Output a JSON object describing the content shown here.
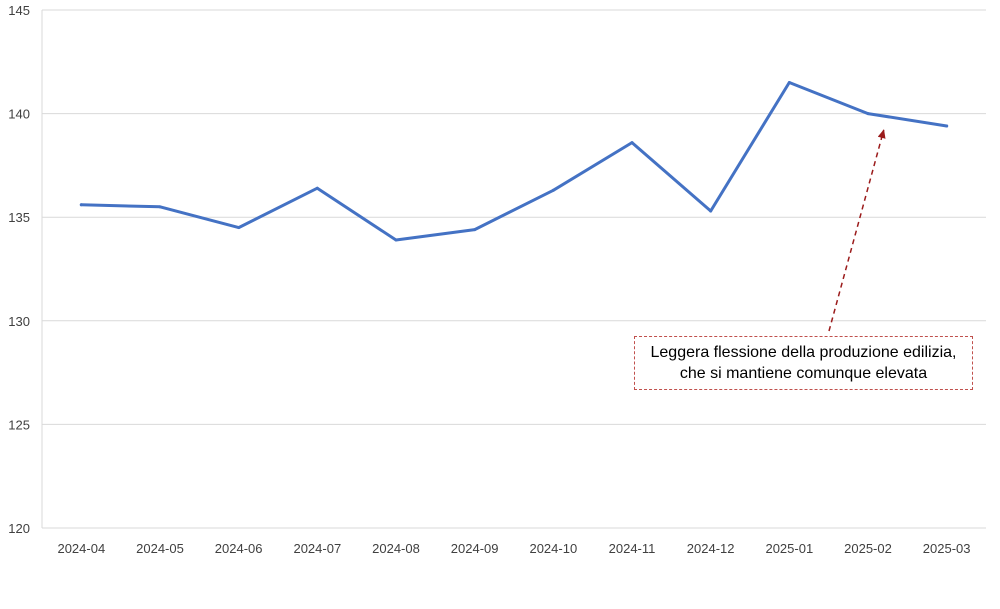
{
  "chart_data": {
    "type": "line",
    "title": "",
    "xlabel": "",
    "ylabel": "",
    "categories": [
      "2024-04",
      "2024-05",
      "2024-06",
      "2024-07",
      "2024-08",
      "2024-09",
      "2024-10",
      "2024-11",
      "2024-12",
      "2025-01",
      "2025-02",
      "2025-03"
    ],
    "series": [
      {
        "values": [
          135.6,
          135.5,
          134.5,
          136.4,
          133.9,
          134.4,
          136.3,
          138.6,
          135.3,
          141.5,
          140.0,
          139.4
        ]
      }
    ],
    "ylim": [
      120,
      145
    ],
    "yticks": [
      "120",
      "125",
      "130",
      "135",
      "140",
      "145"
    ],
    "grid": true,
    "legend": "none",
    "line_color": "#4472c4",
    "annotation": {
      "line1": "Leggera flessione della produzione edilizia,",
      "line2": "che si mantiene comunque elevata",
      "points_to": "2025-02",
      "color": "#c0504d"
    }
  }
}
